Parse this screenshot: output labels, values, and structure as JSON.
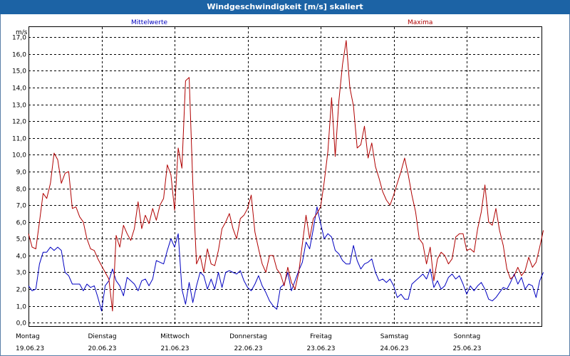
{
  "window": {
    "title": "Windgeschwindigkeit [m/s] skaliert"
  },
  "colors": {
    "mean": "#0000c0",
    "max": "#b00000",
    "grid": "#000000",
    "title_bg": "#1c63a5"
  },
  "chart_data": {
    "type": "line",
    "title": "Windgeschwindigkeit [m/s] skaliert",
    "ylabel": "m/s",
    "ylim": [
      -0.2,
      17.6
    ],
    "y_ticks": [
      "0,0",
      "1,0",
      "2,0",
      "3,0",
      "4,0",
      "5,0",
      "6,0",
      "7,0",
      "8,0",
      "9,0",
      "10,0",
      "11,0",
      "12,0",
      "13,0",
      "14,0",
      "15,0",
      "16,0",
      "17,0"
    ],
    "x_days": [
      {
        "day": "Montag",
        "date": "19.06.23"
      },
      {
        "day": "Dienstag",
        "date": "20.06.23"
      },
      {
        "day": "Mittwoch",
        "date": "21.06.23"
      },
      {
        "day": "Donnerstag",
        "date": "22.06.23"
      },
      {
        "day": "Freitag",
        "date": "23.06.23"
      },
      {
        "day": "Samstag",
        "date": "24.06.23"
      },
      {
        "day": "Sonntag",
        "date": "25.06.23"
      }
    ],
    "x_range_days": [
      0,
      7.05
    ],
    "grid": true,
    "series": [
      {
        "name": "Mittelwerte",
        "color": "#0000c0",
        "points": [
          [
            0.0,
            2.2
          ],
          [
            0.05,
            1.9
          ],
          [
            0.1,
            2.0
          ],
          [
            0.15,
            3.5
          ],
          [
            0.2,
            4.2
          ],
          [
            0.25,
            4.2
          ],
          [
            0.3,
            4.5
          ],
          [
            0.35,
            4.3
          ],
          [
            0.4,
            4.5
          ],
          [
            0.45,
            4.3
          ],
          [
            0.5,
            3.0
          ],
          [
            0.55,
            2.8
          ],
          [
            0.6,
            2.3
          ],
          [
            0.65,
            2.3
          ],
          [
            0.7,
            2.3
          ],
          [
            0.75,
            1.9
          ],
          [
            0.8,
            2.3
          ],
          [
            0.85,
            2.1
          ],
          [
            0.9,
            2.2
          ],
          [
            0.95,
            1.5
          ],
          [
            1.0,
            0.7
          ],
          [
            1.05,
            2.2
          ],
          [
            1.1,
            2.5
          ],
          [
            1.15,
            3.2
          ],
          [
            1.2,
            2.5
          ],
          [
            1.25,
            2.2
          ],
          [
            1.3,
            1.6
          ],
          [
            1.35,
            2.7
          ],
          [
            1.4,
            2.5
          ],
          [
            1.45,
            2.3
          ],
          [
            1.5,
            1.9
          ],
          [
            1.55,
            2.5
          ],
          [
            1.6,
            2.6
          ],
          [
            1.65,
            2.2
          ],
          [
            1.7,
            2.6
          ],
          [
            1.75,
            3.7
          ],
          [
            1.8,
            3.6
          ],
          [
            1.85,
            3.5
          ],
          [
            1.9,
            4.3
          ],
          [
            1.95,
            5.0
          ],
          [
            2.0,
            4.5
          ],
          [
            2.05,
            5.3
          ],
          [
            2.1,
            2.0
          ],
          [
            2.15,
            1.1
          ],
          [
            2.2,
            2.4
          ],
          [
            2.25,
            1.2
          ],
          [
            2.3,
            2.2
          ],
          [
            2.35,
            3.0
          ],
          [
            2.4,
            2.8
          ],
          [
            2.45,
            2.0
          ],
          [
            2.5,
            2.6
          ],
          [
            2.55,
            2.0
          ],
          [
            2.6,
            3.0
          ],
          [
            2.65,
            2.1
          ],
          [
            2.7,
            3.0
          ],
          [
            2.75,
            3.1
          ],
          [
            2.8,
            3.0
          ],
          [
            2.85,
            2.9
          ],
          [
            2.9,
            3.1
          ],
          [
            2.95,
            2.5
          ],
          [
            3.0,
            2.1
          ],
          [
            3.05,
            1.9
          ],
          [
            3.1,
            2.3
          ],
          [
            3.15,
            2.8
          ],
          [
            3.2,
            2.2
          ],
          [
            3.25,
            1.8
          ],
          [
            3.3,
            1.3
          ],
          [
            3.35,
            1.0
          ],
          [
            3.4,
            0.8
          ],
          [
            3.45,
            2.1
          ],
          [
            3.5,
            2.3
          ],
          [
            3.55,
            3.0
          ],
          [
            3.6,
            1.9
          ],
          [
            3.65,
            2.5
          ],
          [
            3.7,
            3.1
          ],
          [
            3.75,
            3.6
          ],
          [
            3.8,
            4.8
          ],
          [
            3.85,
            4.4
          ],
          [
            3.9,
            5.6
          ],
          [
            3.95,
            6.9
          ],
          [
            4.0,
            5.9
          ],
          [
            4.05,
            5.0
          ],
          [
            4.1,
            5.3
          ],
          [
            4.15,
            5.1
          ],
          [
            4.2,
            4.3
          ],
          [
            4.25,
            4.1
          ],
          [
            4.3,
            3.7
          ],
          [
            4.35,
            3.5
          ],
          [
            4.4,
            3.5
          ],
          [
            4.45,
            4.6
          ],
          [
            4.5,
            3.7
          ],
          [
            4.55,
            3.2
          ],
          [
            4.6,
            3.5
          ],
          [
            4.65,
            3.6
          ],
          [
            4.7,
            3.8
          ],
          [
            4.75,
            3.0
          ],
          [
            4.8,
            2.5
          ],
          [
            4.85,
            2.6
          ],
          [
            4.9,
            2.4
          ],
          [
            4.95,
            2.6
          ],
          [
            5.0,
            2.2
          ],
          [
            5.05,
            1.5
          ],
          [
            5.1,
            1.7
          ],
          [
            5.15,
            1.4
          ],
          [
            5.2,
            1.4
          ],
          [
            5.25,
            2.3
          ],
          [
            5.3,
            2.5
          ],
          [
            5.35,
            2.7
          ],
          [
            5.4,
            2.9
          ],
          [
            5.45,
            2.6
          ],
          [
            5.5,
            3.2
          ],
          [
            5.55,
            2.1
          ],
          [
            5.6,
            2.5
          ],
          [
            5.65,
            2.0
          ],
          [
            5.7,
            2.2
          ],
          [
            5.75,
            2.7
          ],
          [
            5.8,
            2.9
          ],
          [
            5.85,
            2.6
          ],
          [
            5.9,
            2.8
          ],
          [
            5.95,
            2.3
          ],
          [
            6.0,
            1.7
          ],
          [
            6.05,
            2.2
          ],
          [
            6.1,
            1.9
          ],
          [
            6.15,
            2.2
          ],
          [
            6.2,
            2.4
          ],
          [
            6.25,
            2.0
          ],
          [
            6.3,
            1.4
          ],
          [
            6.35,
            1.3
          ],
          [
            6.4,
            1.5
          ],
          [
            6.45,
            1.8
          ],
          [
            6.5,
            2.1
          ],
          [
            6.55,
            2.0
          ],
          [
            6.6,
            2.4
          ],
          [
            6.65,
            2.9
          ],
          [
            6.7,
            2.3
          ],
          [
            6.75,
            2.7
          ],
          [
            6.8,
            2.0
          ],
          [
            6.85,
            2.3
          ],
          [
            6.9,
            2.2
          ],
          [
            6.95,
            1.5
          ],
          [
            7.0,
            2.5
          ],
          [
            7.05,
            3.0
          ]
        ]
      },
      {
        "name": "Maxima",
        "color": "#b00000",
        "points": [
          [
            0.0,
            5.3
          ],
          [
            0.05,
            4.5
          ],
          [
            0.1,
            4.4
          ],
          [
            0.15,
            6.0
          ],
          [
            0.2,
            7.7
          ],
          [
            0.25,
            7.4
          ],
          [
            0.3,
            8.3
          ],
          [
            0.35,
            10.1
          ],
          [
            0.4,
            9.7
          ],
          [
            0.45,
            8.3
          ],
          [
            0.5,
            8.9
          ],
          [
            0.55,
            9.0
          ],
          [
            0.6,
            6.8
          ],
          [
            0.65,
            6.9
          ],
          [
            0.7,
            6.3
          ],
          [
            0.75,
            6.0
          ],
          [
            0.8,
            5.0
          ],
          [
            0.85,
            4.4
          ],
          [
            0.9,
            4.3
          ],
          [
            0.95,
            3.8
          ],
          [
            1.0,
            3.4
          ],
          [
            1.05,
            3.0
          ],
          [
            1.1,
            2.6
          ],
          [
            1.15,
            0.7
          ],
          [
            1.2,
            5.2
          ],
          [
            1.25,
            4.5
          ],
          [
            1.3,
            5.8
          ],
          [
            1.35,
            5.3
          ],
          [
            1.4,
            4.9
          ],
          [
            1.45,
            5.6
          ],
          [
            1.5,
            7.2
          ],
          [
            1.55,
            5.6
          ],
          [
            1.6,
            6.4
          ],
          [
            1.65,
            5.9
          ],
          [
            1.7,
            6.8
          ],
          [
            1.75,
            6.1
          ],
          [
            1.8,
            7.0
          ],
          [
            1.85,
            7.4
          ],
          [
            1.9,
            9.4
          ],
          [
            1.95,
            8.8
          ],
          [
            2.0,
            6.7
          ],
          [
            2.05,
            10.4
          ],
          [
            2.1,
            9.2
          ],
          [
            2.15,
            14.4
          ],
          [
            2.2,
            14.6
          ],
          [
            2.25,
            8.3
          ],
          [
            2.3,
            3.5
          ],
          [
            2.35,
            4.0
          ],
          [
            2.4,
            3.0
          ],
          [
            2.45,
            4.4
          ],
          [
            2.5,
            3.5
          ],
          [
            2.55,
            3.4
          ],
          [
            2.6,
            4.3
          ],
          [
            2.65,
            5.6
          ],
          [
            2.7,
            6.0
          ],
          [
            2.75,
            6.5
          ],
          [
            2.8,
            5.6
          ],
          [
            2.85,
            5.0
          ],
          [
            2.9,
            6.2
          ],
          [
            2.95,
            6.4
          ],
          [
            3.0,
            6.8
          ],
          [
            3.05,
            7.6
          ],
          [
            3.1,
            5.4
          ],
          [
            3.15,
            4.4
          ],
          [
            3.2,
            3.5
          ],
          [
            3.25,
            3.0
          ],
          [
            3.3,
            4.0
          ],
          [
            3.35,
            4.0
          ],
          [
            3.4,
            3.2
          ],
          [
            3.45,
            2.9
          ],
          [
            3.5,
            2.2
          ],
          [
            3.55,
            3.3
          ],
          [
            3.6,
            2.4
          ],
          [
            3.65,
            2.0
          ],
          [
            3.7,
            3.0
          ],
          [
            3.75,
            4.7
          ],
          [
            3.8,
            6.4
          ],
          [
            3.85,
            5.0
          ],
          [
            3.9,
            6.2
          ],
          [
            3.95,
            6.5
          ],
          [
            4.0,
            6.9
          ],
          [
            4.05,
            8.4
          ],
          [
            4.1,
            10.2
          ],
          [
            4.15,
            13.4
          ],
          [
            4.2,
            9.9
          ],
          [
            4.25,
            13.2
          ],
          [
            4.3,
            15.4
          ],
          [
            4.35,
            16.8
          ],
          [
            4.4,
            14.0
          ],
          [
            4.45,
            12.9
          ],
          [
            4.5,
            10.4
          ],
          [
            4.55,
            10.6
          ],
          [
            4.6,
            11.7
          ],
          [
            4.65,
            9.8
          ],
          [
            4.7,
            10.7
          ],
          [
            4.75,
            9.3
          ],
          [
            4.8,
            8.6
          ],
          [
            4.85,
            7.8
          ],
          [
            4.9,
            7.3
          ],
          [
            4.95,
            7.0
          ],
          [
            5.0,
            7.6
          ],
          [
            5.05,
            8.3
          ],
          [
            5.1,
            9.0
          ],
          [
            5.15,
            9.8
          ],
          [
            5.2,
            8.8
          ],
          [
            5.25,
            7.6
          ],
          [
            5.3,
            6.6
          ],
          [
            5.35,
            5.0
          ],
          [
            5.4,
            4.7
          ],
          [
            5.45,
            3.5
          ],
          [
            5.5,
            4.5
          ],
          [
            5.55,
            2.5
          ],
          [
            5.6,
            3.8
          ],
          [
            5.65,
            4.2
          ],
          [
            5.7,
            4.0
          ],
          [
            5.75,
            3.5
          ],
          [
            5.8,
            3.8
          ],
          [
            5.85,
            5.1
          ],
          [
            5.9,
            5.3
          ],
          [
            5.95,
            5.3
          ],
          [
            6.0,
            4.3
          ],
          [
            6.05,
            4.4
          ],
          [
            6.1,
            4.2
          ],
          [
            6.15,
            5.6
          ],
          [
            6.2,
            6.6
          ],
          [
            6.25,
            8.2
          ],
          [
            6.3,
            6.0
          ],
          [
            6.35,
            5.8
          ],
          [
            6.4,
            6.8
          ],
          [
            6.45,
            5.5
          ],
          [
            6.5,
            4.6
          ],
          [
            6.55,
            3.2
          ],
          [
            6.6,
            2.6
          ],
          [
            6.65,
            2.8
          ],
          [
            6.7,
            3.3
          ],
          [
            6.75,
            2.8
          ],
          [
            6.8,
            3.1
          ],
          [
            6.85,
            3.9
          ],
          [
            6.9,
            3.3
          ],
          [
            6.95,
            3.6
          ],
          [
            7.0,
            4.5
          ],
          [
            7.05,
            5.5
          ]
        ]
      }
    ]
  }
}
